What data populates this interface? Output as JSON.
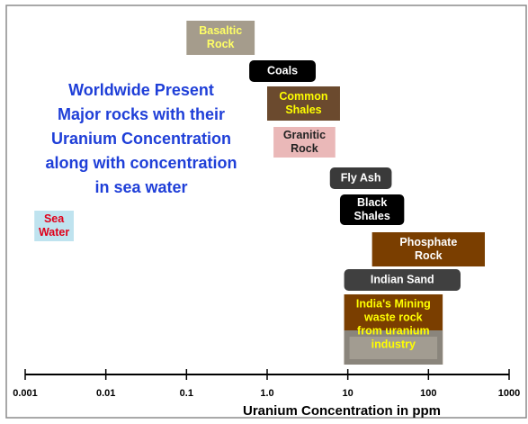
{
  "chart_data": {
    "type": "range",
    "title": [
      "Worldwide Present",
      "Major rocks with their",
      "Uranium Concentration",
      "along with concentration",
      "in sea water"
    ],
    "xlabel": "Uranium Concentration in ppm",
    "xscale": "log",
    "xlim": [
      0.001,
      1000
    ],
    "xticks": [
      0.001,
      0.01,
      0.1,
      {
        "value": 1,
        "label": "1.0"
      },
      10,
      100,
      1000
    ],
    "categories": [
      [
        "Basaltic",
        "Rock"
      ],
      [
        "Coals"
      ],
      [
        "Common",
        "Shales"
      ],
      [
        "Granitic",
        "Rock"
      ],
      [
        "Fly Ash"
      ],
      [
        "Black",
        "Shales"
      ],
      [
        "Sea",
        "Water"
      ],
      [
        "Phosphate",
        "Rock"
      ],
      [
        "Indian Sand"
      ],
      [
        "India's Mining",
        "waste rock",
        "from uranium",
        "industry"
      ]
    ],
    "low": [
      0.1,
      0.6,
      1,
      1.2,
      6,
      8,
      0.0013,
      20,
      9,
      9
    ],
    "high": [
      0.7,
      4,
      8,
      7,
      35,
      50,
      0.004,
      500,
      250,
      150
    ],
    "colors": [
      "#a59c8c",
      "#000000",
      "#6b4a2e",
      "#eab8b8",
      "#3a3a3a",
      "#000000",
      "#bfe3ef",
      "#7a3e00",
      "#404040",
      "#7a3e00"
    ],
    "text_colors": [
      "#ffff66",
      "#ffffff",
      "#ffff00",
      "#222222",
      "#ffffff",
      "#ffffff",
      "#e0001a",
      "#ffffff",
      "#ffffff",
      "#ffff00"
    ]
  }
}
